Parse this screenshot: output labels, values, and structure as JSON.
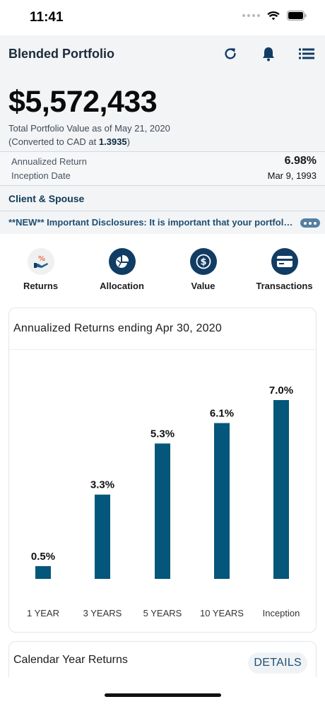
{
  "status": {
    "time": "11:41"
  },
  "header": {
    "title": "Blended Portfolio",
    "icons": [
      "refresh-icon",
      "bell-icon",
      "menu-icon"
    ]
  },
  "portfolio": {
    "value": "$5,572,433",
    "caption_line1": "Total Portfolio Value as of May 21, 2020",
    "caption_line2_prefix": "(Converted to CAD at ",
    "rate": "1.3935",
    "caption_line2_suffix": ")"
  },
  "metrics": {
    "annualized_label": "Annualized Return",
    "annualized_value": "6.98%",
    "inception_label": "Inception Date",
    "inception_value": "Mar 9, 1993"
  },
  "client": {
    "label": "Client & Spouse"
  },
  "disclosure": {
    "text": "**NEW** Important Disclosures:  It is important that your portfolio information is current"
  },
  "quick_nav": [
    {
      "label": "Returns",
      "icon": "returns-icon"
    },
    {
      "label": "Allocation",
      "icon": "allocation-pie-icon"
    },
    {
      "label": "Value",
      "icon": "dollar-coin-icon"
    },
    {
      "label": "Transactions",
      "icon": "card-icon"
    }
  ],
  "chart_title": "Annualized Returns ending Apr 30, 2020",
  "chart_data": {
    "type": "bar",
    "title": "Annualized Returns ending Apr 30, 2020",
    "categories": [
      "1 YEAR",
      "3 YEARS",
      "5 YEARS",
      "10 YEARS",
      "Inception"
    ],
    "values": [
      0.5,
      3.3,
      5.3,
      6.1,
      7.0
    ],
    "data_labels": [
      "0.5%",
      "3.3%",
      "5.3%",
      "6.1%",
      "7.0%"
    ],
    "ylim": [
      0,
      7.0
    ],
    "bar_color": "#04577a",
    "grid": false,
    "legend": "none"
  },
  "calendar": {
    "title": "Calendar Year Returns",
    "details_label": "DETAILS"
  },
  "colors": {
    "accent": "#113c63",
    "header_bg": "#f2f4f6",
    "link": "#1f4f73"
  }
}
